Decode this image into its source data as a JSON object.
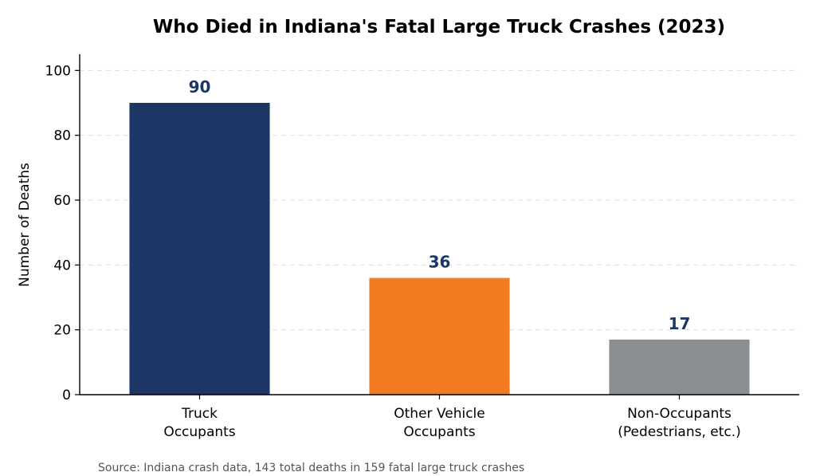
{
  "chart_data": {
    "type": "bar",
    "title": "Who Died in Indiana's Fatal Large Truck Crashes (2023)",
    "xlabel": "",
    "ylabel": "Number of Deaths",
    "categories": [
      [
        "Truck",
        "Occupants"
      ],
      [
        "Other Vehicle",
        "Occupants"
      ],
      [
        "Non-Occupants",
        "(Pedestrians, etc.)"
      ]
    ],
    "values": [
      90,
      36,
      17
    ],
    "colors": [
      "#1c3766",
      "#f37c21",
      "#8b8e91"
    ],
    "ylim": [
      0,
      105
    ],
    "yticks": [
      0,
      20,
      40,
      60,
      80,
      100
    ],
    "grid": true,
    "source": "Source: Indiana crash data, 143 total deaths in 159 fatal large truck crashes"
  }
}
